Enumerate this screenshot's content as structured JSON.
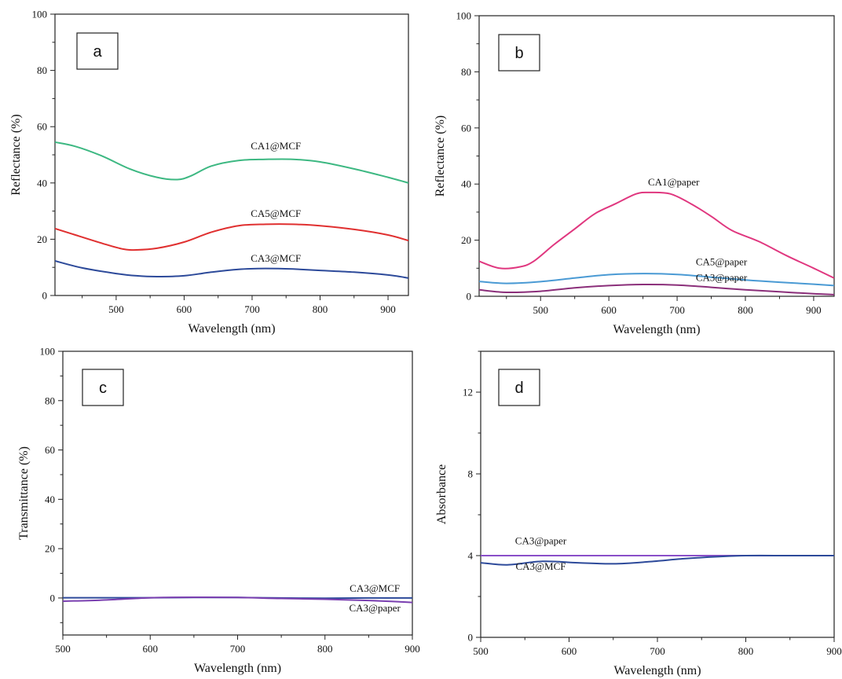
{
  "chart_data": [
    {
      "type": "line",
      "panel_label": "a",
      "xlabel": "Wavelength (nm)",
      "ylabel": "Reflectance (%)",
      "xlim": [
        410,
        930
      ],
      "ylim": [
        0,
        100
      ],
      "xticks": [
        500,
        600,
        700,
        800,
        900
      ],
      "yticks": [
        0,
        20,
        40,
        60,
        80,
        100
      ],
      "grid": false,
      "series": [
        {
          "name": "CA1@MCF",
          "color": "#3db882",
          "x": [
            410,
            440,
            480,
            520,
            560,
            590,
            610,
            640,
            680,
            720,
            760,
            800,
            850,
            900,
            930
          ],
          "y": [
            54.5,
            53.0,
            49.5,
            45.0,
            42.0,
            41.2,
            42.5,
            46.0,
            48.0,
            48.4,
            48.4,
            47.5,
            45.0,
            42.0,
            40.0
          ]
        },
        {
          "name": "CA5@MCF",
          "color": "#e03030",
          "x": [
            410,
            440,
            480,
            510,
            530,
            560,
            600,
            640,
            680,
            720,
            760,
            800,
            850,
            900,
            930
          ],
          "y": [
            23.8,
            21.5,
            18.5,
            16.5,
            16.2,
            16.8,
            19.0,
            22.5,
            24.8,
            25.3,
            25.3,
            24.8,
            23.5,
            21.5,
            19.5
          ]
        },
        {
          "name": "CA3@MCF",
          "color": "#2d4a9a",
          "x": [
            410,
            450,
            500,
            530,
            560,
            600,
            640,
            680,
            720,
            760,
            800,
            850,
            900,
            930
          ],
          "y": [
            12.3,
            9.8,
            7.8,
            7.0,
            6.7,
            7.0,
            8.3,
            9.3,
            9.6,
            9.4,
            8.9,
            8.3,
            7.3,
            6.2
          ]
        }
      ],
      "annotations": [
        {
          "text": "CA1@MCF",
          "x": 735,
          "y": 52
        },
        {
          "text": "CA5@MCF",
          "x": 735,
          "y": 28
        },
        {
          "text": "CA3@MCF",
          "x": 735,
          "y": 12
        }
      ]
    },
    {
      "type": "line",
      "panel_label": "b",
      "xlabel": "Wavelength (nm)",
      "ylabel": "Reflectance (%)",
      "xlim": [
        410,
        930
      ],
      "ylim": [
        0,
        100
      ],
      "xticks": [
        500,
        600,
        700,
        800,
        900
      ],
      "yticks": [
        0,
        20,
        40,
        60,
        80,
        100
      ],
      "grid": false,
      "series": [
        {
          "name": "CA1@paper",
          "color": "#e0377f",
          "x": [
            410,
            440,
            470,
            490,
            520,
            550,
            580,
            610,
            640,
            660,
            690,
            720,
            750,
            780,
            820,
            860,
            900,
            930
          ],
          "y": [
            12.5,
            10.0,
            10.5,
            12.5,
            18.5,
            24.0,
            29.5,
            33.0,
            36.5,
            37.0,
            36.5,
            33.0,
            28.5,
            23.5,
            19.5,
            14.5,
            10.0,
            6.5
          ]
        },
        {
          "name": "CA5@paper",
          "color": "#4a9ad4",
          "x": [
            410,
            450,
            500,
            550,
            600,
            650,
            700,
            750,
            800,
            850,
            900,
            930
          ],
          "y": [
            5.3,
            4.6,
            5.2,
            6.5,
            7.7,
            8.1,
            7.8,
            6.8,
            5.8,
            5.0,
            4.3,
            3.8
          ]
        },
        {
          "name": "CA3@paper",
          "color": "#8b2f7a",
          "x": [
            410,
            450,
            500,
            550,
            600,
            650,
            700,
            750,
            800,
            850,
            900,
            930
          ],
          "y": [
            2.3,
            1.4,
            1.8,
            3.0,
            3.8,
            4.2,
            4.0,
            3.2,
            2.3,
            1.6,
            0.9,
            0.6
          ]
        }
      ],
      "annotations": [
        {
          "text": "CA1@paper",
          "x": 695,
          "y": 39.5
        },
        {
          "text": "CA5@paper",
          "x": 765,
          "y": 11.0
        },
        {
          "text": "CA3@paper",
          "x": 765,
          "y": 5.5
        }
      ]
    },
    {
      "type": "line",
      "panel_label": "c",
      "xlabel": "Wavelength (nm)",
      "ylabel": "Transmittance (%)",
      "xlim": [
        500,
        900
      ],
      "ylim": [
        -15,
        100
      ],
      "xticks": [
        500,
        600,
        700,
        800,
        900
      ],
      "yticks": [
        0,
        20,
        40,
        60,
        80,
        100
      ],
      "grid": false,
      "series": [
        {
          "name": "CA3@MCF",
          "color": "#2d4a9a",
          "x": [
            500,
            550,
            600,
            650,
            700,
            750,
            800,
            850,
            900
          ],
          "y": [
            0.1,
            0.1,
            0.1,
            0.2,
            0.2,
            0.0,
            -0.1,
            0.0,
            0.0
          ]
        },
        {
          "name": "CA3@paper",
          "color": "#7a3fb0",
          "x": [
            500,
            550,
            600,
            650,
            700,
            750,
            800,
            850,
            900
          ],
          "y": [
            -1.3,
            -0.8,
            0.1,
            0.3,
            0.2,
            -0.2,
            -0.5,
            -1.0,
            -1.8
          ]
        }
      ],
      "annotations": [
        {
          "text": "CA3@MCF",
          "x": 857,
          "y": 2.5
        },
        {
          "text": "CA3@paper",
          "x": 857,
          "y": -5.5
        }
      ]
    },
    {
      "type": "line",
      "panel_label": "d",
      "xlabel": "Wavelength (nm)",
      "ylabel": "Absorbance",
      "xlim": [
        500,
        900
      ],
      "ylim": [
        0,
        14
      ],
      "xticks": [
        500,
        600,
        700,
        800,
        900
      ],
      "yticks": [
        0,
        4,
        8,
        12
      ],
      "grid": false,
      "series": [
        {
          "name": "CA3@paper",
          "color": "#8a4fc8",
          "x": [
            500,
            900
          ],
          "y": [
            4.0,
            4.0
          ]
        },
        {
          "name": "CA3@MCF",
          "color": "#2d4a9a",
          "x": [
            500,
            530,
            570,
            610,
            650,
            690,
            730,
            770,
            800,
            850,
            900
          ],
          "y": [
            3.65,
            3.55,
            3.72,
            3.65,
            3.6,
            3.7,
            3.85,
            3.95,
            4.0,
            4.0,
            4.0
          ]
        }
      ],
      "annotations": [
        {
          "text": "CA3@paper",
          "x": 568,
          "y": 4.55
        },
        {
          "text": "CA3@MCF",
          "x": 568,
          "y": 3.3
        }
      ]
    }
  ]
}
